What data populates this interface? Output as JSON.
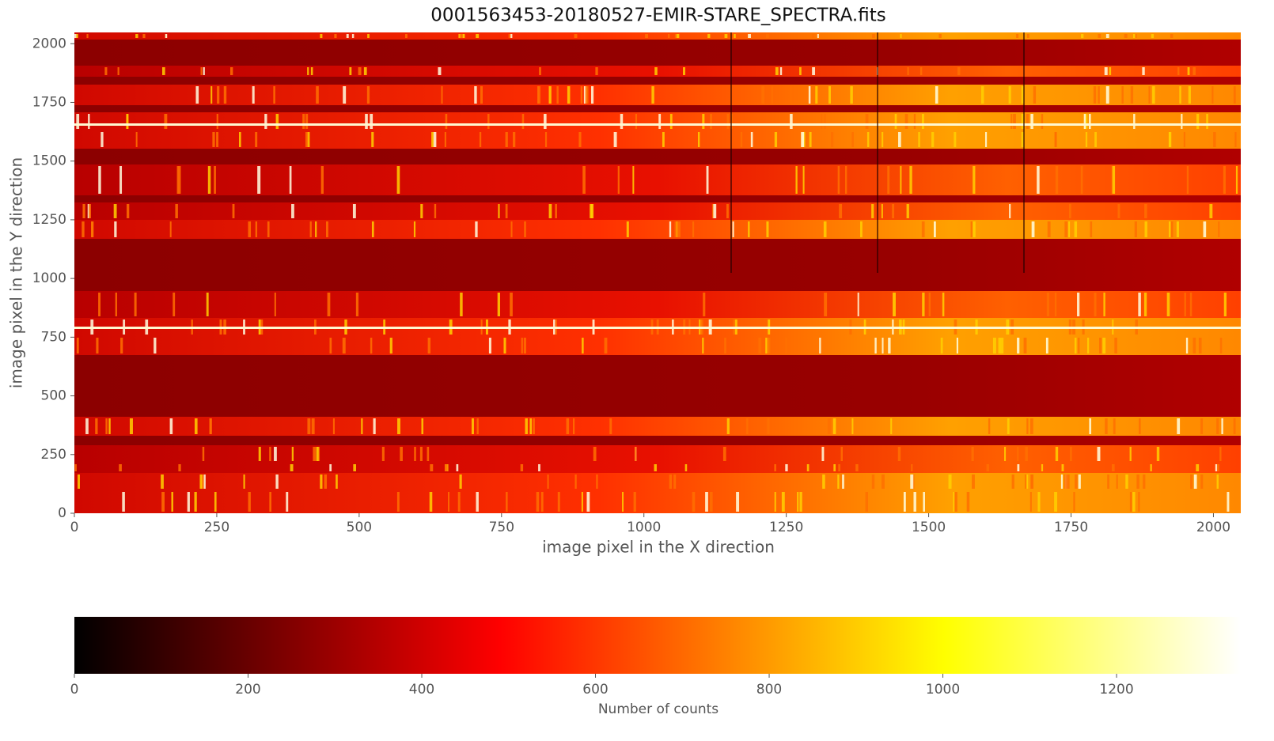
{
  "chart_data": {
    "type": "image",
    "title": "0001563453-20180527-EMIR-STARE_SPECTRA.fits",
    "x_label": "image pixel in the X direction",
    "y_label": "image pixel in the Y direction",
    "xlim": [
      0,
      2048
    ],
    "ylim": [
      0,
      2048
    ],
    "xticks": [
      0,
      250,
      500,
      750,
      1000,
      1250,
      1500,
      1750,
      2000
    ],
    "yticks": [
      0,
      250,
      500,
      750,
      1000,
      1250,
      1500,
      1750,
      2000
    ],
    "colormap": "hot",
    "colorbar": {
      "label": "Number of counts",
      "clim": [
        0,
        1343
      ],
      "ticks": [
        0,
        200,
        400,
        600,
        800,
        1000,
        1200
      ]
    }
  }
}
